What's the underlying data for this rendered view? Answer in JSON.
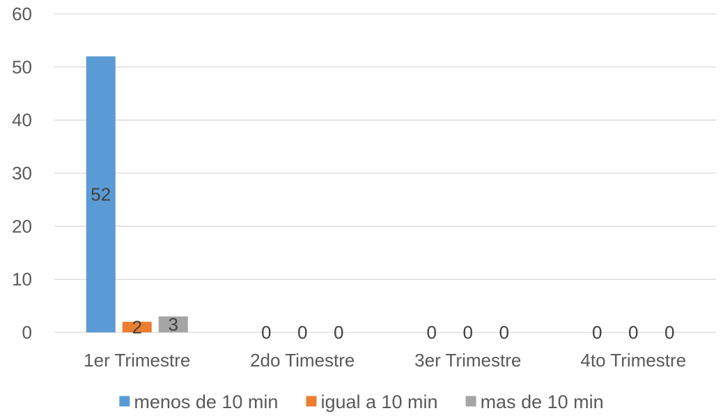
{
  "chart_data": {
    "type": "bar",
    "categories": [
      "1er Trimestre",
      "2do Timestre",
      "3er Trimestre",
      "4to Trimestre"
    ],
    "series": [
      {
        "name": "menos de 10 min",
        "values": [
          52,
          0,
          0,
          0
        ],
        "color": "#5B9BD5"
      },
      {
        "name": "igual a 10 min",
        "values": [
          2,
          0,
          0,
          0
        ],
        "color": "#ED7D31"
      },
      {
        "name": "mas de 10 min",
        "values": [
          3,
          0,
          0,
          0
        ],
        "color": "#A5A5A5"
      }
    ],
    "y_ticks": [
      0,
      10,
      20,
      30,
      40,
      50,
      60
    ],
    "ylim": [
      0,
      60
    ],
    "grid": true,
    "legend_position": "bottom",
    "data_labels": true
  }
}
